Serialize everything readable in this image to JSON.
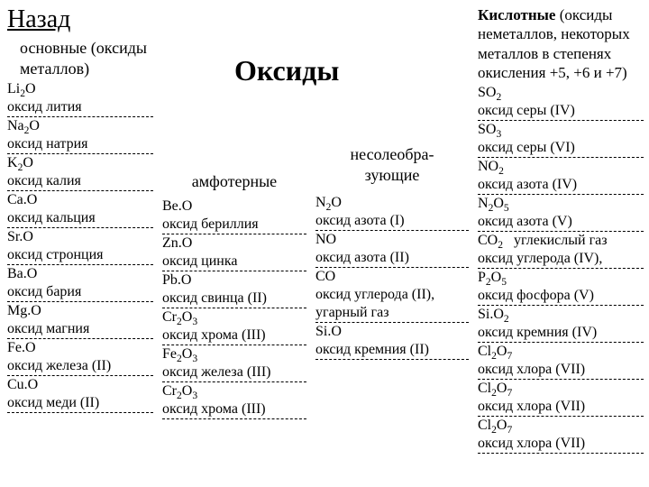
{
  "back_label": "Назад",
  "main_title": "Оксиды",
  "columns": {
    "basic": {
      "header": "основные (оксиды металлов)",
      "items": [
        {
          "formula": "Li<sub>2</sub>O",
          "name": "оксид лития"
        },
        {
          "formula": "Na<sub>2</sub>O",
          "name": "оксид натрия"
        },
        {
          "formula": "K<sub>2</sub>O",
          "name": "оксид калия"
        },
        {
          "formula": "Ca.O",
          "name": "оксид кальция"
        },
        {
          "formula": "Sr.O",
          "name": "оксид стронция"
        },
        {
          "formula": "Ba.O",
          "name": "оксид бария"
        },
        {
          "formula": "Mg.O",
          "name": "оксид магния"
        },
        {
          "formula": "Fe.O",
          "name": "оксид железа (II)"
        },
        {
          "formula": "Cu.O",
          "name": "оксид меди (II)"
        }
      ]
    },
    "amphoteric": {
      "header": "амфотерные",
      "items": [
        {
          "formula": "Be.O",
          "name": "оксид бериллия"
        },
        {
          "formula": "Zn.O",
          "name": "оксид цинка"
        },
        {
          "formula": "Pb.O",
          "name": "оксид свинца (II)"
        },
        {
          "formula": "Cr<sub>2</sub>O<sub>3</sub>",
          "name": "оксид хрома (III)"
        },
        {
          "formula": "Fe<sub>2</sub>O<sub>3</sub>",
          "name": "оксид железа (III)"
        },
        {
          "formula": "Cr<sub>2</sub>O<sub>3</sub>",
          "name": "оксид хрома (III)"
        }
      ]
    },
    "nonsalt": {
      "header": "несолеобра-\nзующие",
      "items": [
        {
          "formula": "N<sub>2</sub>O",
          "name": "оксид азота (I)"
        },
        {
          "formula": "NO",
          "name": "оксид азота (II)"
        },
        {
          "formula": "CO",
          "name": "оксид углерода (II), угарный газ"
        },
        {
          "formula": "Si.O",
          "name": "оксид кремния (II)"
        }
      ]
    },
    "acidic": {
      "header_bold": "Кислотные",
      "header_rest": " (оксиды неметаллов, некоторых металлов в степенях окисления +5, +6 и +7)",
      "items": [
        {
          "formula": "SO<sub>2</sub>",
          "name": "оксид серы (IV)"
        },
        {
          "formula": "SO<sub>3</sub>",
          "name": "оксид серы (VI)"
        },
        {
          "formula": "NO<sub>2</sub>",
          "name": "оксид азота (IV)"
        },
        {
          "formula": "N<sub>2</sub>O<sub>5</sub>",
          "name": "оксид азота (V)"
        },
        {
          "formula": "CO<sub>2</sub>&nbsp;&nbsp;&nbsp;углекислый газ",
          "name": "оксид углерода (IV),"
        },
        {
          "formula": "P<sub>2</sub>O<sub>5</sub>",
          "name": "оксид фосфора (V)"
        },
        {
          "formula": "Si.O<sub>2</sub>",
          "name": "оксид кремния (IV)"
        },
        {
          "formula": "Cl<sub>2</sub>O<sub>7</sub>",
          "name": "оксид хлора (VII)"
        },
        {
          "formula": "Cl<sub>2</sub>O<sub>7</sub>",
          "name": "оксид хлора (VII)"
        },
        {
          "formula": "Cl<sub>2</sub>O<sub>7</sub>",
          "name": "оксид хлора (VII)"
        }
      ]
    }
  }
}
